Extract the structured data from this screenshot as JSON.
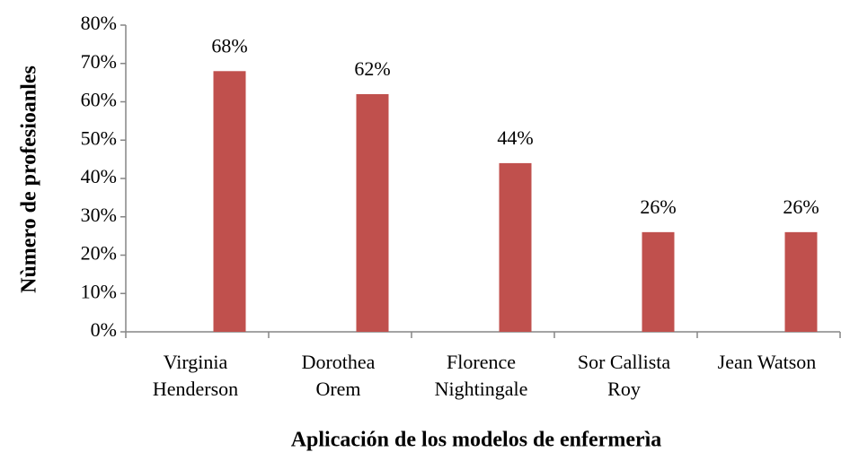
{
  "chart_data": {
    "type": "bar",
    "x_label": "Aplicación de los modelos de enfermerìa",
    "y_label": "Nùmero de profesioanles",
    "categories": [
      [
        "Virginia",
        "Henderson"
      ],
      [
        "Dorothea",
        "Orem"
      ],
      [
        "Florence",
        "Nightingale"
      ],
      [
        "Sor Callista",
        "Roy"
      ],
      [
        "Jean Watson"
      ]
    ],
    "values": [
      68,
      62,
      44,
      26,
      26
    ],
    "value_labels": [
      "68%",
      "62%",
      "44%",
      "26%",
      "26%"
    ],
    "color": "#c0504d",
    "ylim": [
      0,
      80
    ],
    "yticks": [
      {
        "value": 0,
        "label": "0%"
      },
      {
        "value": 10,
        "label": "10%"
      },
      {
        "value": 20,
        "label": "20%"
      },
      {
        "value": 30,
        "label": "30%"
      },
      {
        "value": 40,
        "label": "40%"
      },
      {
        "value": 50,
        "label": "50%"
      },
      {
        "value": 60,
        "label": "60%"
      },
      {
        "value": 70,
        "label": "70%"
      },
      {
        "value": 80,
        "label": "80%"
      }
    ],
    "grid": false
  }
}
